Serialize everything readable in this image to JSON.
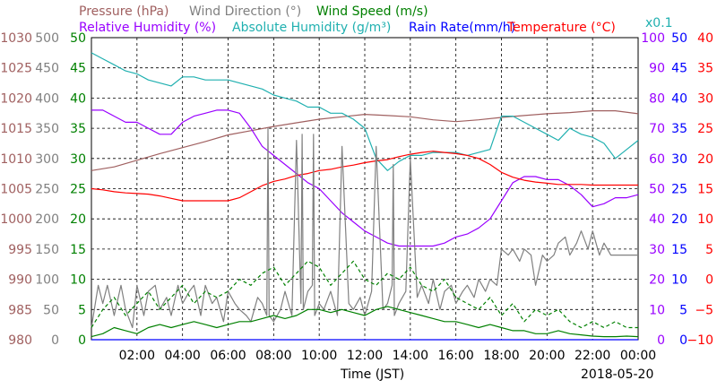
{
  "chart_data": {
    "type": "line",
    "date": "2018-05-20",
    "xlabel": "Time (JST)",
    "x_ticks": [
      "02:00",
      "04:00",
      "06:00",
      "08:00",
      "10:00",
      "12:00",
      "14:00",
      "16:00",
      "18:00",
      "20:00",
      "22:00",
      "00:00"
    ],
    "xlim": [
      0,
      24
    ],
    "legend_top": [
      {
        "name": "Pressure (hPa)",
        "color": "#a06060"
      },
      {
        "name": "Wind Direction (°)",
        "color": "#808080"
      },
      {
        "name": "Wind Speed (m/s)",
        "color": "#008000"
      }
    ],
    "legend_bottom": [
      {
        "name": "Relative Humidity (%)",
        "color": "#9900ff"
      },
      {
        "name": "Absolute Humidity (g/m³)",
        "color": "#20b0b0",
        "suffix": "x0.1"
      },
      {
        "name": "Rain Rate(mm/h)",
        "color": "#0000ff"
      },
      {
        "name": "Temperature (°C)",
        "color": "#ff0000"
      }
    ],
    "axes": {
      "pressure": {
        "color": "#a06060",
        "ylim": [
          980,
          1030
        ],
        "ticks": [
          "980",
          "985",
          "990",
          "995",
          "1000",
          "1005",
          "1010",
          "1015",
          "1020",
          "1025",
          "1030"
        ]
      },
      "wind_direction": {
        "color": "#808080",
        "ylim": [
          0,
          500
        ],
        "ticks": [
          "0",
          "50",
          "100",
          "150",
          "200",
          "250",
          "300",
          "350",
          "400",
          "450",
          "500"
        ]
      },
      "wind_speed": {
        "color": "#008000",
        "ylim": [
          0,
          50
        ],
        "ticks": [
          "0",
          "5",
          "10",
          "15",
          "20",
          "25",
          "30",
          "35",
          "40",
          "45",
          "50"
        ]
      },
      "relative_humidity": {
        "color": "#9900ff",
        "ylim": [
          0,
          100
        ],
        "ticks": [
          "0",
          "10",
          "20",
          "30",
          "40",
          "50",
          "60",
          "70",
          "80",
          "90",
          "100"
        ]
      },
      "rain_rate": {
        "color": "#0000ff",
        "ylim": [
          0,
          50
        ],
        "ticks": [
          "0",
          "5",
          "10",
          "15",
          "20",
          "25",
          "30",
          "35",
          "40",
          "45",
          "50"
        ]
      },
      "temperature": {
        "color": "#ff0000",
        "ylim": [
          -10,
          40
        ],
        "ticks": [
          "−10",
          "−5",
          "0",
          "5",
          "10",
          "15",
          "20",
          "25",
          "30",
          "35",
          "40"
        ]
      }
    },
    "series": [
      {
        "name": "Pressure (hPa)",
        "axis": "pressure",
        "color": "#a06060",
        "x": [
          0,
          1,
          2,
          3,
          4,
          5,
          6,
          7,
          8,
          9,
          10,
          11,
          12,
          13,
          14,
          15,
          16,
          17,
          18,
          19,
          20,
          21,
          22,
          23,
          24
        ],
        "y": [
          1008,
          1008.6,
          1009.7,
          1010.8,
          1011.8,
          1012.8,
          1013.9,
          1014.6,
          1015.3,
          1015.9,
          1016.5,
          1016.9,
          1017.3,
          1017.1,
          1016.9,
          1016.4,
          1016.1,
          1016.4,
          1016.8,
          1017.1,
          1017.4,
          1017.6,
          1017.9,
          1017.9,
          1017.4
        ]
      },
      {
        "name": "Relative Humidity (%)",
        "axis": "relative_humidity",
        "color": "#9900ff",
        "x": [
          0,
          0.5,
          1,
          1.5,
          2,
          2.5,
          3,
          3.5,
          4,
          4.5,
          5,
          5.5,
          6,
          6.5,
          7,
          7.5,
          8,
          8.5,
          9,
          9.5,
          10,
          10.5,
          11,
          11.5,
          12,
          12.5,
          13,
          13.5,
          14,
          14.5,
          15,
          15.5,
          16,
          16.5,
          17,
          17.5,
          18,
          18.5,
          19,
          19.5,
          20,
          20.5,
          21,
          21.5,
          22,
          22.5,
          23,
          23.5,
          24
        ],
        "y": [
          76,
          76,
          74,
          72,
          72,
          70,
          68,
          68,
          72,
          74,
          75,
          76,
          76,
          75,
          70,
          64,
          61,
          58,
          55,
          52,
          50,
          46,
          42,
          39,
          36,
          34,
          32,
          31,
          31,
          31,
          31,
          32,
          34,
          35,
          37,
          40,
          46,
          52,
          54,
          54,
          53,
          53,
          51,
          48,
          44,
          45,
          47,
          47,
          48
        ]
      },
      {
        "name": "Absolute Humidity (g/m³)",
        "axis": "relative_humidity",
        "color": "#20b0b0",
        "x": [
          0,
          0.5,
          1,
          1.5,
          2,
          2.5,
          3,
          3.5,
          4,
          4.5,
          5,
          5.5,
          6,
          6.5,
          7,
          7.5,
          8,
          8.5,
          9,
          9.5,
          10,
          10.5,
          11,
          11.5,
          12,
          12.5,
          13,
          13.5,
          14,
          14.5,
          15,
          15.5,
          16,
          16.5,
          17,
          17.5,
          18,
          18.5,
          19,
          19.5,
          20,
          20.5,
          21,
          21.5,
          22,
          22.5,
          23,
          23.5,
          24
        ],
        "y": [
          95,
          93,
          91,
          89,
          88,
          86,
          85,
          84,
          87,
          87,
          86,
          86,
          86,
          85,
          84,
          83,
          81,
          80,
          79,
          77,
          77,
          75,
          75,
          73,
          70,
          60,
          56,
          59,
          61,
          61,
          62,
          62,
          62,
          61,
          62,
          63,
          74,
          74,
          72,
          70,
          68,
          66,
          70,
          68,
          67,
          65,
          60,
          63,
          66
        ]
      },
      {
        "name": "Temperature (°C)",
        "axis": "temperature",
        "color": "#ff0000",
        "x": [
          0,
          0.5,
          1,
          1.5,
          2,
          2.5,
          3,
          3.5,
          4,
          4.5,
          5,
          5.5,
          6,
          6.5,
          7,
          7.5,
          8,
          8.5,
          9,
          9.5,
          10,
          10.5,
          11,
          11.5,
          12,
          12.5,
          13,
          13.5,
          14,
          14.5,
          15,
          15.5,
          16,
          16.5,
          17,
          17.5,
          18,
          18.5,
          19,
          19.5,
          20,
          20.5,
          21,
          21.5,
          22,
          22.5,
          23,
          23.5,
          24
        ],
        "y": [
          15,
          14.8,
          14.5,
          14.3,
          14.2,
          14.1,
          13.8,
          13.4,
          13,
          13,
          13,
          13,
          13,
          13.5,
          14.5,
          15.5,
          16.2,
          16.6,
          17.2,
          17.5,
          18,
          18.2,
          18.6,
          18.9,
          19.3,
          19.6,
          19.8,
          20.3,
          20.7,
          21,
          21.2,
          21,
          20.8,
          20.5,
          20,
          19,
          17.7,
          16.9,
          16.4,
          16.1,
          15.9,
          15.7,
          15.7,
          15.7,
          15.6,
          15.6,
          15.6,
          15.6,
          15.6
        ]
      },
      {
        "name": "Rain Rate(mm/h)",
        "axis": "rain_rate",
        "color": "#0000ff",
        "x": [
          0,
          24
        ],
        "y": [
          0,
          0
        ]
      },
      {
        "name": "Wind Direction (°)",
        "axis": "wind_direction",
        "color": "#808080",
        "x": [
          0,
          0.3,
          0.5,
          0.7,
          1,
          1.3,
          1.5,
          1.8,
          2,
          2.3,
          2.5,
          2.8,
          3,
          3.3,
          3.5,
          3.8,
          4,
          4.3,
          4.5,
          4.8,
          5,
          5.3,
          5.5,
          5.8,
          6,
          6.3,
          6.5,
          6.8,
          7,
          7.3,
          7.5,
          7.7,
          7.75,
          7.8,
          8,
          8.3,
          8.5,
          8.8,
          9,
          9.2,
          9.25,
          9.3,
          9.5,
          9.7,
          9.75,
          9.8,
          10,
          10.2,
          10.5,
          10.8,
          11,
          11.3,
          11.5,
          11.8,
          12,
          12.3,
          12.5,
          12.8,
          13,
          13.2,
          13.25,
          13.3,
          13.5,
          13.8,
          14,
          14.3,
          14.5,
          14.8,
          15,
          15.3,
          15.5,
          15.8,
          16,
          16.3,
          16.5,
          16.8,
          17,
          17.3,
          17.5,
          17.8,
          18,
          18.3,
          18.5,
          18.8,
          19,
          19.3,
          19.5,
          19.8,
          20,
          20.3,
          20.5,
          20.8,
          21,
          21.3,
          21.5,
          21.8,
          22,
          22.3,
          22.5,
          22.8,
          23,
          23.3,
          23.5,
          23.8,
          24
        ],
        "y": [
          20,
          90,
          60,
          90,
          40,
          90,
          50,
          20,
          90,
          40,
          80,
          90,
          50,
          70,
          40,
          90,
          60,
          80,
          90,
          40,
          90,
          60,
          70,
          30,
          80,
          60,
          50,
          40,
          30,
          70,
          60,
          40,
          350,
          40,
          30,
          50,
          80,
          40,
          330,
          60,
          340,
          50,
          80,
          90,
          340,
          40,
          60,
          50,
          80,
          40,
          320,
          60,
          50,
          70,
          40,
          80,
          320,
          50,
          60,
          90,
          290,
          40,
          60,
          80,
          300,
          70,
          90,
          60,
          100,
          50,
          80,
          90,
          60,
          80,
          90,
          70,
          100,
          80,
          100,
          90,
          150,
          140,
          150,
          130,
          150,
          140,
          90,
          140,
          130,
          140,
          160,
          170,
          140,
          160,
          180,
          150,
          180,
          140,
          160,
          140,
          140,
          140,
          140,
          140,
          140
        ]
      },
      {
        "name": "Wind Speed (m/s)",
        "axis": "wind_speed",
        "color": "#008000",
        "x": [
          0,
          0.5,
          1,
          1.5,
          2,
          2.5,
          3,
          3.5,
          4,
          4.5,
          5,
          5.5,
          6,
          6.5,
          7,
          7.5,
          8,
          8.5,
          9,
          9.5,
          10,
          10.5,
          11,
          11.5,
          12,
          12.5,
          13,
          13.5,
          14,
          14.5,
          15,
          15.5,
          16,
          16.5,
          17,
          17.5,
          18,
          18.5,
          19,
          19.5,
          20,
          20.5,
          21,
          21.5,
          22,
          22.5,
          23,
          23.5,
          24
        ],
        "y": [
          0.5,
          1,
          2,
          1.5,
          1,
          2,
          2.5,
          2,
          2.5,
          3,
          2.5,
          2,
          2.5,
          3,
          3,
          3.5,
          4,
          3.5,
          4,
          5,
          5,
          4.5,
          5,
          4.5,
          4,
          5,
          5.5,
          5,
          4.5,
          4,
          3.5,
          3,
          3,
          2.5,
          2,
          2.5,
          2,
          1.5,
          1.5,
          1,
          1,
          1.5,
          1,
          0.8,
          0.6,
          0.5,
          0.5,
          0.6,
          0.5
        ]
      },
      {
        "name": "Wind Speed gust (m/s)",
        "axis": "wind_speed",
        "color": "#008000",
        "dashed": true,
        "x": [
          0,
          0.5,
          1,
          1.5,
          2,
          2.5,
          3,
          3.5,
          4,
          4.5,
          5,
          5.5,
          6,
          6.5,
          7,
          7.5,
          8,
          8.5,
          9,
          9.5,
          10,
          10.5,
          11,
          11.5,
          12,
          12.5,
          13,
          13.5,
          14,
          14.5,
          15,
          15.5,
          16,
          16.5,
          17,
          17.5,
          18,
          18.5,
          19,
          19.5,
          20,
          20.5,
          21,
          21.5,
          22,
          22.5,
          23,
          23.5,
          24
        ],
        "y": [
          2,
          5,
          7,
          4,
          6,
          8,
          5,
          7,
          9,
          6,
          8,
          7,
          8,
          10,
          9,
          11,
          12,
          9,
          11,
          13,
          12,
          9,
          11,
          13,
          10,
          9,
          11,
          10,
          12,
          9,
          8,
          10,
          7,
          6,
          5,
          7,
          4,
          6,
          3,
          5,
          4,
          5,
          3,
          2,
          3,
          2,
          3,
          2,
          2
        ]
      }
    ]
  }
}
